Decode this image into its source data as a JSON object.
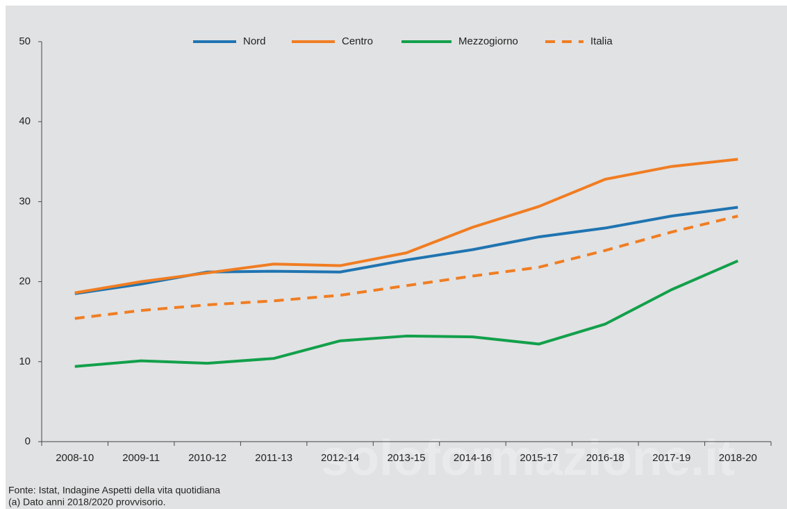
{
  "chart_data": {
    "type": "line",
    "categories": [
      "2008-10",
      "2009-11",
      "2010-12",
      "2011-13",
      "2012-14",
      "2013-15",
      "2014-16",
      "2015-17",
      "2016-18",
      "2017-19",
      "2018-20"
    ],
    "series": [
      {
        "name": "Nord",
        "color": "#1f74b1",
        "dashed": false,
        "values": [
          18.5,
          19.7,
          21.2,
          21.3,
          21.2,
          22.7,
          24.0,
          25.6,
          26.7,
          28.2,
          29.3
        ]
      },
      {
        "name": "Centro",
        "color": "#f07d22",
        "dashed": false,
        "values": [
          18.6,
          20.0,
          21.1,
          22.2,
          22.0,
          23.6,
          26.8,
          29.4,
          32.8,
          34.4,
          35.3
        ]
      },
      {
        "name": "Mezzogiorno",
        "color": "#12a04b",
        "dashed": false,
        "values": [
          9.4,
          10.1,
          9.8,
          10.4,
          12.6,
          13.2,
          13.1,
          12.2,
          14.7,
          19.0,
          22.6
        ]
      },
      {
        "name": "Italia",
        "color": "#f07d22",
        "dashed": true,
        "values": [
          15.4,
          16.4,
          17.1,
          17.6,
          18.3,
          19.5,
          20.7,
          21.8,
          23.9,
          26.2,
          28.2
        ]
      }
    ],
    "ylim": [
      0,
      50
    ],
    "yticks": [
      0,
      10,
      20,
      30,
      40,
      50
    ],
    "grid": false,
    "source": "Fonte: Istat, Indagine Aspetti della vita quotidiana",
    "note": "(a) Dato anni 2018/2020 provvisorio.",
    "watermark": "soloformazione.it"
  }
}
